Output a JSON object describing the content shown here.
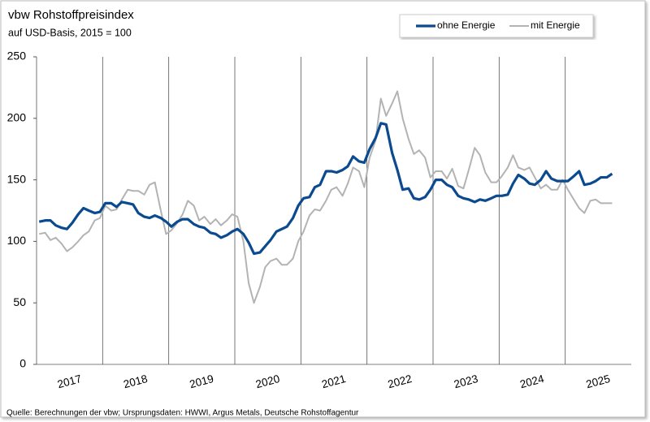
{
  "chart_data": {
    "type": "line",
    "title": "vbw Rohstoffpreisindex",
    "subtitle": "auf USD-Basis, 2015 = 100",
    "source": "Quelle: Berechnungen der vbw; Ursprungsdaten: HWWI, Argus Metals, Deutsche Rohstoffagentur",
    "x": [
      2017.04,
      2017.13,
      2017.21,
      2017.29,
      2017.38,
      2017.46,
      2017.54,
      2017.63,
      2017.71,
      2017.79,
      2017.88,
      2017.96,
      2018.04,
      2018.13,
      2018.21,
      2018.29,
      2018.38,
      2018.46,
      2018.54,
      2018.63,
      2018.71,
      2018.79,
      2018.88,
      2018.96,
      2019.04,
      2019.13,
      2019.21,
      2019.29,
      2019.38,
      2019.46,
      2019.54,
      2019.63,
      2019.71,
      2019.79,
      2019.88,
      2019.96,
      2020.04,
      2020.13,
      2020.21,
      2020.29,
      2020.38,
      2020.46,
      2020.54,
      2020.63,
      2020.71,
      2020.79,
      2020.88,
      2020.96,
      2021.04,
      2021.13,
      2021.21,
      2021.29,
      2021.38,
      2021.46,
      2021.54,
      2021.63,
      2021.71,
      2021.79,
      2021.88,
      2021.96,
      2022.04,
      2022.13,
      2022.21,
      2022.29,
      2022.38,
      2022.46,
      2022.54,
      2022.63,
      2022.71,
      2022.79,
      2022.88,
      2022.96,
      2023.04,
      2023.13,
      2023.21,
      2023.29,
      2023.38,
      2023.46,
      2023.54,
      2023.63,
      2023.71,
      2023.79,
      2023.88,
      2023.96,
      2024.04,
      2024.13,
      2024.21,
      2024.29,
      2024.38,
      2024.46,
      2024.54,
      2024.63,
      2024.71,
      2024.79,
      2024.88,
      2024.96,
      2025.04,
      2025.13,
      2025.21,
      2025.29,
      2025.38,
      2025.46,
      2025.54,
      2025.63,
      2025.71
    ],
    "series": [
      {
        "name": "ohne Energie",
        "color": "#0b4a8f",
        "width": 3.2,
        "values": [
          116,
          117,
          117,
          113,
          111,
          110,
          115,
          122,
          127,
          125,
          123,
          124,
          131,
          131,
          128,
          132,
          131,
          130,
          123,
          120,
          119,
          121,
          119,
          116,
          112,
          116,
          118,
          118,
          114,
          112,
          111,
          107,
          106,
          103,
          105,
          108,
          110,
          106,
          99,
          90,
          91,
          96,
          101,
          108,
          110,
          112,
          119,
          129,
          135,
          136,
          144,
          146,
          157,
          157,
          156,
          158,
          161,
          169,
          165,
          164,
          175,
          184,
          196,
          195,
          172,
          158,
          142,
          143,
          135,
          134,
          136,
          142,
          150,
          150,
          146,
          144,
          137,
          135,
          134,
          132,
          134,
          133,
          135,
          137,
          137,
          138,
          147,
          154,
          151,
          147,
          146,
          150,
          157,
          151,
          149,
          149,
          149,
          153,
          157,
          146,
          147,
          149,
          152,
          152,
          155
        ]
      },
      {
        "name": "mit Energie",
        "color": "#b3b3b3",
        "width": 2,
        "values": [
          106,
          107,
          101,
          103,
          98,
          92,
          95,
          100,
          105,
          108,
          117,
          119,
          129,
          125,
          126,
          134,
          142,
          141,
          141,
          138,
          146,
          148,
          125,
          106,
          109,
          115,
          122,
          133,
          129,
          117,
          120,
          114,
          118,
          113,
          117,
          122,
          120,
          100,
          66,
          50,
          63,
          79,
          84,
          86,
          81,
          81,
          86,
          100,
          108,
          121,
          126,
          125,
          133,
          142,
          144,
          137,
          147,
          160,
          157,
          144,
          168,
          182,
          216,
          202,
          212,
          222,
          200,
          183,
          171,
          174,
          168,
          152,
          157,
          157,
          151,
          159,
          145,
          143,
          158,
          176,
          170,
          156,
          148,
          148,
          153,
          160,
          170,
          160,
          158,
          160,
          152,
          143,
          146,
          142,
          142,
          150,
          142,
          134,
          127,
          123,
          133,
          134,
          131,
          131,
          131
        ]
      }
    ],
    "xlim": [
      2017,
      2026
    ],
    "xticks": [
      {
        "value": 2017.5,
        "label": "2017"
      },
      {
        "value": 2018.5,
        "label": "2018"
      },
      {
        "value": 2019.5,
        "label": "2019"
      },
      {
        "value": 2020.5,
        "label": "2020"
      },
      {
        "value": 2021.5,
        "label": "2021"
      },
      {
        "value": 2022.5,
        "label": "2022"
      },
      {
        "value": 2023.5,
        "label": "2023"
      },
      {
        "value": 2024.5,
        "label": "2024"
      },
      {
        "value": 2025.5,
        "label": "2025"
      }
    ],
    "xgrid": [
      2018,
      2019,
      2020,
      2021,
      2022,
      2023,
      2024,
      2025
    ],
    "ylim": [
      0,
      250
    ],
    "yticks": [
      0,
      50,
      100,
      150,
      200,
      250
    ],
    "legend": "top-right"
  }
}
